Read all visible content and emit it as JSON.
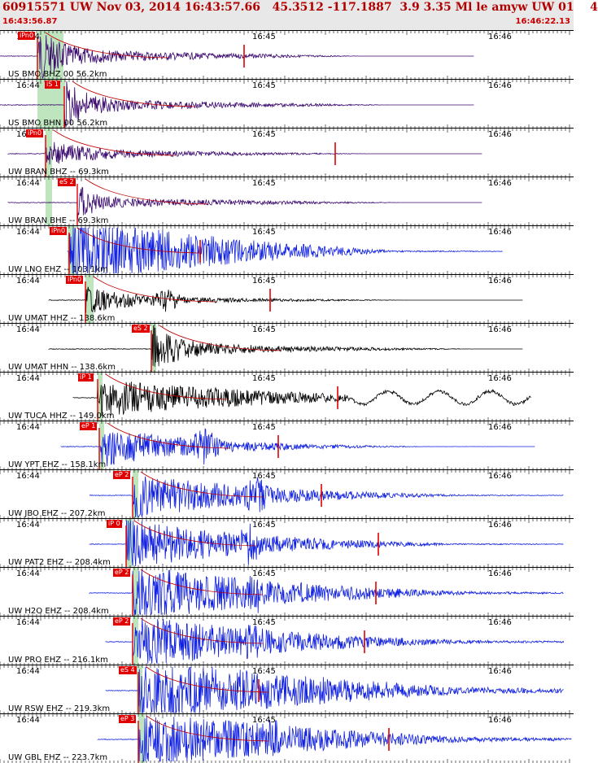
{
  "header": {
    "title": "60915571 UW Nov 03, 2014 16:43:57.66   45.3512 -117.1887  3.9 3.35 Ml le amyw UW 01    4",
    "start_time": "16:43:56.87",
    "end_time": "16:46:22.13"
  },
  "time_labels": [
    "16:44",
    "16:45",
    "16:46"
  ],
  "colors": {
    "purple": "#3a0a6e",
    "blue": "#1020e0",
    "black": "#000000",
    "pick": "#e00000",
    "green": "#bfe5bf",
    "moveout": "#000000"
  },
  "traces": [
    {
      "label": "US BMO BHZ 00 56.2km",
      "pick": "iPn0",
      "color": "purple"
    },
    {
      "label": "US BMO BHN 00 56.2km",
      "pick": "iS 1",
      "color": "purple"
    },
    {
      "label": "UW BRAN BHZ -- 69.3km",
      "pick": "iPn0",
      "color": "purple"
    },
    {
      "label": "UW BRAN BHE -- 69.3km",
      "pick": "eS 2",
      "color": "purple"
    },
    {
      "label": "UW LNO EHZ -- 103.1km",
      "pick": "iPn0",
      "color": "blue"
    },
    {
      "label": "UW UMAT HHZ -- 138.6km",
      "pick": "iPn0",
      "color": "black"
    },
    {
      "label": "UW UMAT HHN -- 138.6km",
      "pick": "eS 2",
      "color": "black"
    },
    {
      "label": "UW TUCA HHZ -- 149.0km",
      "pick": "iP 1",
      "color": "black"
    },
    {
      "label": "UW YPT EHZ -- 158.1km",
      "pick": "eP 1",
      "color": "blue"
    },
    {
      "label": "UW JBO EHZ -- 207.2km",
      "pick": "eP 2",
      "color": "blue"
    },
    {
      "label": "UW PAT2 EHZ -- 208.4km",
      "pick": "iP 0",
      "color": "blue"
    },
    {
      "label": "UW H2O EHZ -- 208.4km",
      "pick": "eP 2",
      "color": "blue"
    },
    {
      "label": "UW PRO EHZ -- 216.1km",
      "pick": "eP 2",
      "color": "blue"
    },
    {
      "label": "UW RSW EHZ -- 219.3km",
      "pick": "eS 4",
      "color": "blue"
    },
    {
      "label": "UW GBL EHZ -- 223.7km",
      "pick": "eP 3",
      "color": "blue"
    }
  ]
}
